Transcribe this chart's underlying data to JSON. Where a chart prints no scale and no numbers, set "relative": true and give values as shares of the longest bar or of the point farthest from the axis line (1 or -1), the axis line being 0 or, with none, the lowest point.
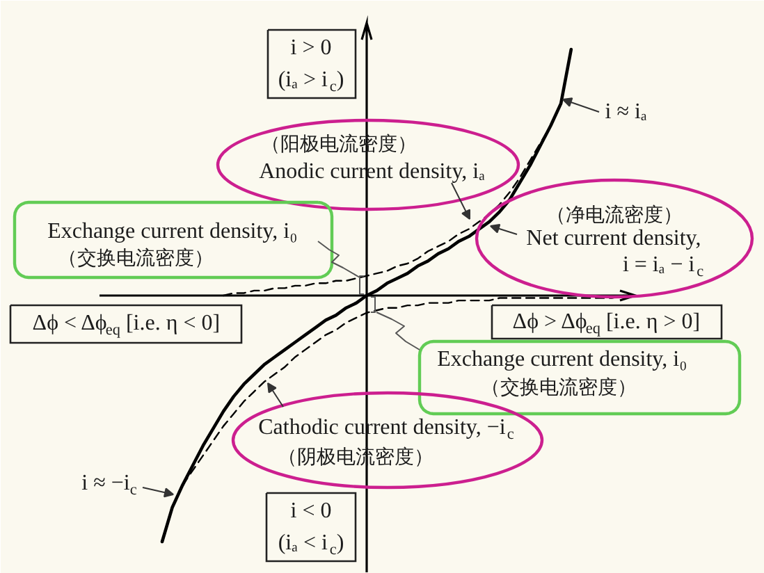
{
  "chart_data": {
    "type": "line",
    "relative": true,
    "categories": [
      null,
      null,
      null,
      null,
      null,
      null,
      null,
      null,
      null,
      null,
      null,
      null,
      null,
      null,
      null,
      null,
      null,
      null,
      null,
      null,
      null,
      null,
      null,
      null,
      null,
      null,
      null,
      null,
      null,
      null,
      null,
      null,
      null,
      null,
      null,
      null,
      null,
      null,
      null,
      null,
      null,
      null,
      null,
      null,
      null,
      null,
      null
    ],
    "series": [
      {
        "color": "#000000",
        "line_style": "solid",
        "values": [
          -1.0,
          -0.86,
          -0.77,
          -0.69,
          -0.61,
          -0.54,
          -0.47,
          -0.41,
          -0.36,
          -0.32,
          -0.28,
          -0.25,
          -0.22,
          -0.19,
          -0.16,
          -0.13,
          -0.1,
          -0.08,
          -0.05,
          -0.03,
          0,
          0.02,
          0.05,
          0.07,
          0.09,
          0.12,
          0.14,
          0.17,
          0.19,
          0.22,
          0.24,
          0.27,
          0.3,
          0.34,
          0.39,
          0.46,
          0.53,
          0.61,
          0.69,
          0.78,
          1.0,
          null,
          null,
          null,
          null,
          null,
          null
        ]
      },
      {
        "color": "#000000",
        "line_style": "dashed",
        "values": [
          null,
          null,
          null,
          null,
          null,
          null,
          0.0,
          0.01,
          0.01,
          0.02,
          0.02,
          0.03,
          0.03,
          0.04,
          0.04,
          0.05,
          0.05,
          0.06,
          0.06,
          0.07,
          0.08,
          0.09,
          0.1,
          0.12,
          0.13,
          0.15,
          0.18,
          0.2,
          0.22,
          0.25,
          0.27,
          0.3,
          0.33,
          0.37,
          0.42,
          0.48,
          0.55,
          0.62,
          0.69,
          null,
          null,
          null,
          null,
          null,
          null,
          null,
          null
        ]
      },
      {
        "color": "#000000",
        "line_style": "dashed",
        "values": [
          null,
          null,
          -0.77,
          -0.71,
          -0.65,
          -0.59,
          -0.53,
          -0.48,
          -0.43,
          -0.39,
          -0.35,
          -0.32,
          -0.29,
          -0.25,
          -0.22,
          -0.19,
          -0.16,
          -0.14,
          -0.11,
          -0.09,
          -0.07,
          -0.06,
          -0.05,
          -0.05,
          -0.04,
          -0.04,
          -0.03,
          -0.03,
          -0.03,
          -0.02,
          -0.02,
          -0.02,
          -0.02,
          -0.01,
          -0.01,
          -0.01,
          -0.01,
          -0.01,
          -0.01,
          -0.01,
          -0.01,
          -0.01,
          -0.01,
          -0.01,
          -0.01,
          0,
          0
        ]
      }
    ],
    "annotations": [
      "i > 0\n(iₐ > i$_{c}$)",
      "（阳极电流密度）\nAnodic current density, iₐ",
      "Exchange current density, i₀\n（交换电流密度）",
      "i ≈ iₐ",
      "（净电流密度）\nNet current density,\ni = iₐ − i$_{c}$",
      "Δϕ < Δϕ$_{eq}$ [i.e. η < 0]",
      "Δϕ > Δϕ$_{eq}$ [i.e. η > 0]",
      "Exchange current density, i₀\n（交换电流密度）",
      "Cathodic current density, −i$_{c}$\n（阴极电流密度）",
      "i ≈ −i$_{c}$",
      "i < 0\n(iₐ < i$_{c}$)"
    ]
  }
}
